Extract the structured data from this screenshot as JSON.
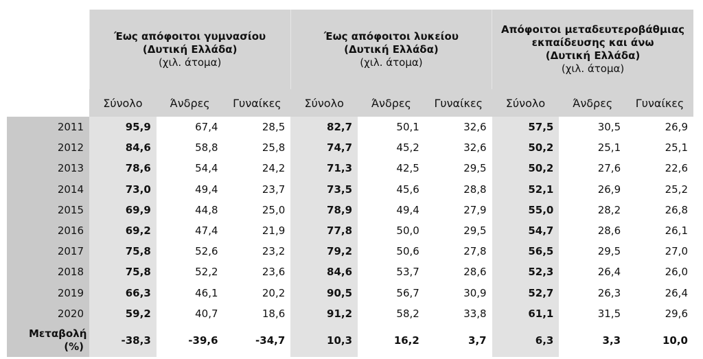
{
  "header": {
    "groups": [
      {
        "title": "Έως απόφοιτοι γυμνασίου",
        "region": "(Δυτική Ελλάδα)",
        "unit": "(χιλ. άτομα)"
      },
      {
        "title": "Έως απόφοιτοι λυκείου",
        "region": "(Δυτική Ελλάδα)",
        "unit": "(χιλ. άτομα)"
      },
      {
        "title": "Απόφοιτοι μεταδευτεροβάθμιας εκπαίδευσης και άνω",
        "region": "(Δυτική Ελλάδα)",
        "unit": "(χιλ. άτομα)"
      }
    ],
    "columns": [
      "Σύνολο",
      "Άνδρες",
      "Γυναίκες"
    ]
  },
  "table": {
    "rows": [
      {
        "label": "2011",
        "values": [
          "95,9",
          "67,4",
          "28,5",
          "82,7",
          "50,1",
          "32,6",
          "57,5",
          "30,5",
          "26,9"
        ]
      },
      {
        "label": "2012",
        "values": [
          "84,6",
          "58,8",
          "25,8",
          "74,7",
          "45,2",
          "32,6",
          "50,2",
          "25,1",
          "25,1"
        ]
      },
      {
        "label": "2013",
        "values": [
          "78,6",
          "54,4",
          "24,2",
          "71,3",
          "42,5",
          "29,5",
          "50,2",
          "27,6",
          "22,6"
        ]
      },
      {
        "label": "2014",
        "values": [
          "73,0",
          "49,4",
          "23,7",
          "73,5",
          "45,6",
          "28,8",
          "52,1",
          "26,9",
          "25,2"
        ]
      },
      {
        "label": "2015",
        "values": [
          "69,9",
          "44,8",
          "25,0",
          "78,9",
          "49,4",
          "27,9",
          "55,0",
          "28,2",
          "26,8"
        ]
      },
      {
        "label": "2016",
        "values": [
          "69,2",
          "47,4",
          "21,9",
          "77,8",
          "50,0",
          "29,5",
          "54,7",
          "28,6",
          "26,1"
        ]
      },
      {
        "label": "2017",
        "values": [
          "75,8",
          "52,6",
          "23,2",
          "79,2",
          "50,6",
          "27,8",
          "56,5",
          "29,5",
          "27,0"
        ]
      },
      {
        "label": "2018",
        "values": [
          "75,8",
          "52,2",
          "23,6",
          "84,6",
          "53,7",
          "28,6",
          "52,3",
          "26,4",
          "26,0"
        ]
      },
      {
        "label": "2019",
        "values": [
          "66,3",
          "46,1",
          "20,2",
          "90,5",
          "56,7",
          "30,9",
          "52,7",
          "26,3",
          "26,4"
        ]
      },
      {
        "label": "2020",
        "values": [
          "59,2",
          "40,7",
          "18,6",
          "91,2",
          "58,2",
          "33,8",
          "61,1",
          "31,5",
          "29,6"
        ]
      }
    ],
    "change": {
      "label": "Μεταβολή (%)",
      "values": [
        "-38,3",
        "-39,6",
        "-34,7",
        "10,3",
        "16,2",
        "3,7",
        "6,3",
        "3,3",
        "10,0"
      ]
    }
  }
}
